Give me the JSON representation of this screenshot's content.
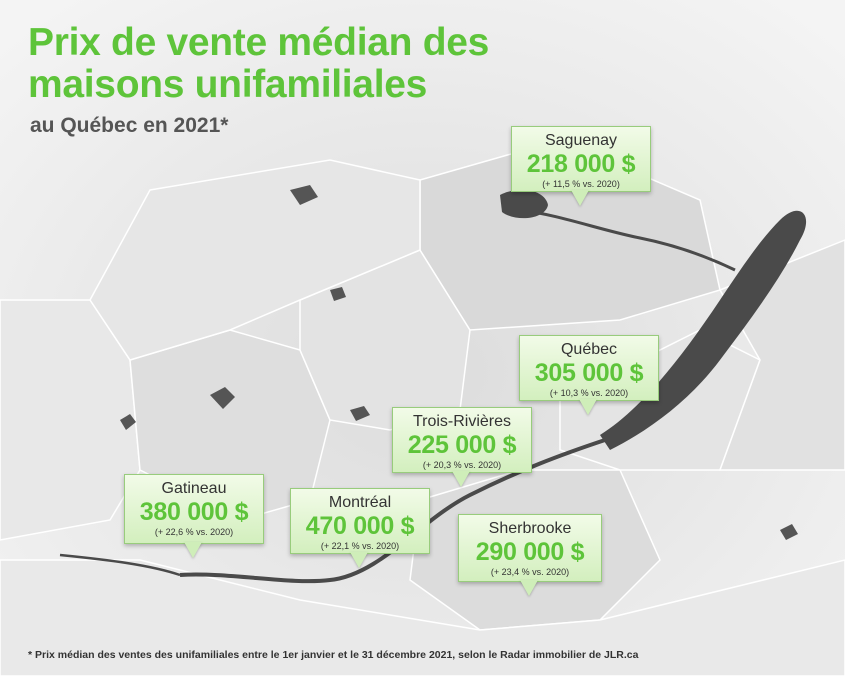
{
  "header": {
    "title_line1": "Prix de vente médian des",
    "title_line2": "maisons unifamiliales",
    "subtitle": "au Québec en 2021*"
  },
  "colors": {
    "accent": "#5ec43a",
    "callout_fill": "#dff3cf",
    "callout_border": "#98cc7c",
    "river": "#3f3f3f",
    "map_base": "#ededed"
  },
  "cities": [
    {
      "id": "saguenay",
      "name": "Saguenay",
      "price": "218 000 $",
      "change": "(+ 11,5 % vs. 2020)"
    },
    {
      "id": "quebec",
      "name": "Québec",
      "price": "305 000 $",
      "change": "(+ 10,3 % vs. 2020)"
    },
    {
      "id": "trois-rivieres",
      "name": "Trois-Rivières",
      "price": "225 000 $",
      "change": "(+ 20,3 % vs. 2020)"
    },
    {
      "id": "gatineau",
      "name": "Gatineau",
      "price": "380 000 $",
      "change": "(+ 22,6 % vs. 2020)"
    },
    {
      "id": "montreal",
      "name": "Montréal",
      "price": "470 000 $",
      "change": "(+ 22,1 % vs. 2020)"
    },
    {
      "id": "sherbrooke",
      "name": "Sherbrooke",
      "price": "290 000 $",
      "change": "(+ 23,4 % vs. 2020)"
    }
  ],
  "footnote": "* Prix médian des ventes des unifamiliales entre le 1er janvier et le 31 décembre 2021, selon le Radar immobilier de JLR.ca"
}
